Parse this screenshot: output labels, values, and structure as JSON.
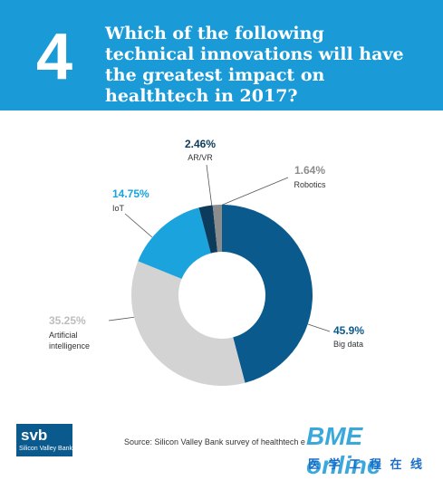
{
  "header": {
    "number": "4",
    "title": "Which of the following technical innovations will have the greatest impact on healthtech in 2017?"
  },
  "chart_data": {
    "type": "pie",
    "categories": [
      "Big data",
      "Artificial intelligence",
      "IoT",
      "AR/VR",
      "Robotics"
    ],
    "values": [
      45.9,
      35.25,
      14.75,
      2.46,
      1.64
    ],
    "value_labels": [
      "45.9%",
      "35.25%",
      "14.75%",
      "2.46%",
      "1.64%"
    ],
    "colors": [
      "#0b5a8e",
      "#d3d3d3",
      "#1aa3dc",
      "#0d3b5c",
      "#8c8c8c"
    ],
    "label_colors": [
      "#0b5a8e",
      "#bdbdbd",
      "#1aa3dc",
      "#0d3b5c",
      "#8c8c8c"
    ]
  },
  "footer": {
    "logo": "svb",
    "logo_sub": "Silicon Valley Bank",
    "source": "Source: Silicon Valley Bank survey of healthtech e",
    "watermark": "BME online",
    "watermark_sub": "医 学 工 程 在 线"
  }
}
